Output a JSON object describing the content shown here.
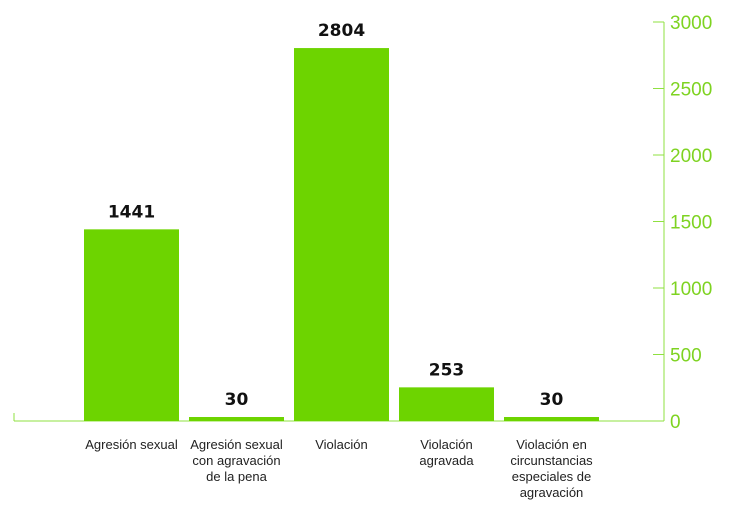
{
  "chart_data": {
    "type": "bar",
    "categories": [
      "Agresión sexual",
      "Agresión sexual con agravación de la pena",
      "Violación",
      "Violación agravada",
      "Violación en circunstancias especiales de agravación"
    ],
    "values": [
      1441,
      30,
      2804,
      253,
      30
    ],
    "data_labels": [
      "1441",
      "30",
      "2804",
      "253",
      "30"
    ],
    "title": "",
    "xlabel": "",
    "ylabel": "",
    "ylim": [
      0,
      3000
    ],
    "yticks": [
      "0",
      "500",
      "1000",
      "1500",
      "2000",
      "2500",
      "3000"
    ],
    "yaxis_side": "right",
    "grid": false,
    "legend": "none",
    "colors": {
      "bar": "#6dd400",
      "axis": "#8fe040",
      "tick_label": "#7ed321",
      "value_label": "#111111"
    }
  }
}
